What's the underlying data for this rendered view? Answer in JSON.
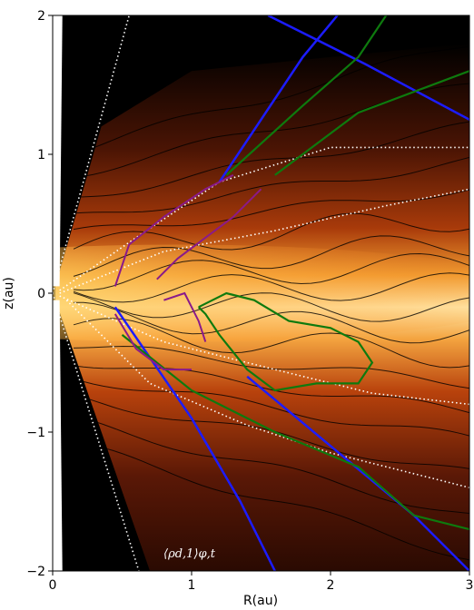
{
  "chart_data": {
    "type": "heatmap",
    "title": "",
    "xlabel": "R(au)",
    "ylabel": "z(au)",
    "xlim": [
      0,
      3
    ],
    "ylim": [
      -2,
      2
    ],
    "xticks": [
      0,
      1,
      2,
      3
    ],
    "xtick_labels": [
      "0",
      "1",
      "2",
      "3"
    ],
    "yticks": [
      -2,
      -1,
      0,
      1,
      2
    ],
    "ytick_labels": [
      "−2",
      "−1",
      "0",
      "1",
      "2"
    ],
    "panel_label": "⟨ρd,1⟩φ,t",
    "colors": {
      "background": "#000000",
      "disk_mid": "#ffe6a0",
      "disk_core": "#ffd24a",
      "disk_orange": "#e8701c",
      "disk_outer": "#8a2a08",
      "blue_line": "#1c1cff",
      "green_line": "#0e7a0e",
      "purple_line": "#8a1a8a",
      "streamline": "#000000",
      "dotted": "#ffffff"
    },
    "series": [
      {
        "kind": "dotted",
        "points": [
          [
            0,
            0
          ],
          [
            0.55,
            2.0
          ]
        ]
      },
      {
        "kind": "dotted",
        "points": [
          [
            0,
            0
          ],
          [
            0.62,
            -2.0
          ]
        ]
      },
      {
        "kind": "dotted",
        "points": [
          [
            0.05,
            0.02
          ],
          [
            0.6,
            0.4
          ],
          [
            1.2,
            0.8
          ],
          [
            2.0,
            1.05
          ],
          [
            3.0,
            1.05
          ]
        ]
      },
      {
        "kind": "dotted",
        "points": [
          [
            0.05,
            0.0
          ],
          [
            0.8,
            0.3
          ],
          [
            1.6,
            0.45
          ],
          [
            2.4,
            0.63
          ],
          [
            3.0,
            0.75
          ]
        ]
      },
      {
        "kind": "dotted",
        "points": [
          [
            0.05,
            -0.02
          ],
          [
            0.8,
            -0.35
          ],
          [
            1.6,
            -0.55
          ],
          [
            2.3,
            -0.72
          ],
          [
            3.0,
            -0.8
          ]
        ]
      },
      {
        "kind": "dotted",
        "points": [
          [
            0.1,
            -0.05
          ],
          [
            0.7,
            -0.65
          ],
          [
            1.4,
            -0.95
          ],
          [
            2.0,
            -1.15
          ],
          [
            2.8,
            -1.35
          ],
          [
            3.0,
            -1.4
          ]
        ]
      },
      {
        "kind": "blue",
        "points": [
          [
            1.2,
            0.8
          ],
          [
            1.8,
            1.7
          ],
          [
            2.05,
            2.0
          ]
        ]
      },
      {
        "kind": "blue",
        "points": [
          [
            1.55,
            2.0
          ],
          [
            2.25,
            1.65
          ],
          [
            3.0,
            1.25
          ]
        ]
      },
      {
        "kind": "blue",
        "points": [
          [
            0.45,
            -0.1
          ],
          [
            1.0,
            -0.9
          ],
          [
            1.35,
            -1.5
          ],
          [
            1.6,
            -2.0
          ]
        ]
      },
      {
        "kind": "blue",
        "points": [
          [
            1.4,
            -0.6
          ],
          [
            2.0,
            -1.1
          ],
          [
            2.6,
            -1.6
          ],
          [
            3.0,
            -2.0
          ]
        ]
      },
      {
        "kind": "green",
        "points": [
          [
            1.25,
            0.85
          ],
          [
            1.8,
            1.35
          ],
          [
            2.2,
            1.7
          ],
          [
            2.4,
            2.0
          ]
        ]
      },
      {
        "kind": "green",
        "points": [
          [
            1.6,
            0.85
          ],
          [
            2.2,
            1.3
          ],
          [
            3.0,
            1.6
          ]
        ]
      },
      {
        "kind": "green",
        "points": [
          [
            0.5,
            -0.3
          ],
          [
            1.0,
            -0.7
          ],
          [
            1.6,
            -1.0
          ],
          [
            2.2,
            -1.25
          ],
          [
            2.6,
            -1.6
          ],
          [
            3.0,
            -1.7
          ]
        ]
      },
      {
        "kind": "green",
        "points": [
          [
            1.05,
            -0.1
          ],
          [
            1.15,
            -0.05
          ],
          [
            1.25,
            0.0
          ],
          [
            1.45,
            -0.05
          ],
          [
            1.7,
            -0.2
          ],
          [
            2.0,
            -0.25
          ],
          [
            2.2,
            -0.35
          ],
          [
            2.3,
            -0.5
          ],
          [
            2.2,
            -0.65
          ],
          [
            1.9,
            -0.65
          ],
          [
            1.6,
            -0.7
          ],
          [
            1.4,
            -0.55
          ],
          [
            1.2,
            -0.3
          ],
          [
            1.1,
            -0.15
          ],
          [
            1.05,
            -0.1
          ]
        ]
      },
      {
        "kind": "purple",
        "points": [
          [
            0.45,
            0.05
          ],
          [
            0.55,
            0.35
          ],
          [
            0.8,
            0.55
          ],
          [
            1.1,
            0.75
          ],
          [
            1.3,
            0.85
          ]
        ]
      },
      {
        "kind": "purple",
        "points": [
          [
            0.75,
            0.1
          ],
          [
            0.9,
            0.25
          ],
          [
            1.1,
            0.4
          ],
          [
            1.3,
            0.55
          ],
          [
            1.5,
            0.75
          ]
        ]
      },
      {
        "kind": "purple",
        "points": [
          [
            0.45,
            -0.15
          ],
          [
            0.6,
            -0.4
          ],
          [
            0.8,
            -0.55
          ],
          [
            1.0,
            -0.55
          ]
        ]
      },
      {
        "kind": "purple",
        "points": [
          [
            0.8,
            -0.05
          ],
          [
            0.95,
            0.0
          ],
          [
            1.05,
            -0.2
          ],
          [
            1.1,
            -0.35
          ]
        ]
      }
    ]
  }
}
